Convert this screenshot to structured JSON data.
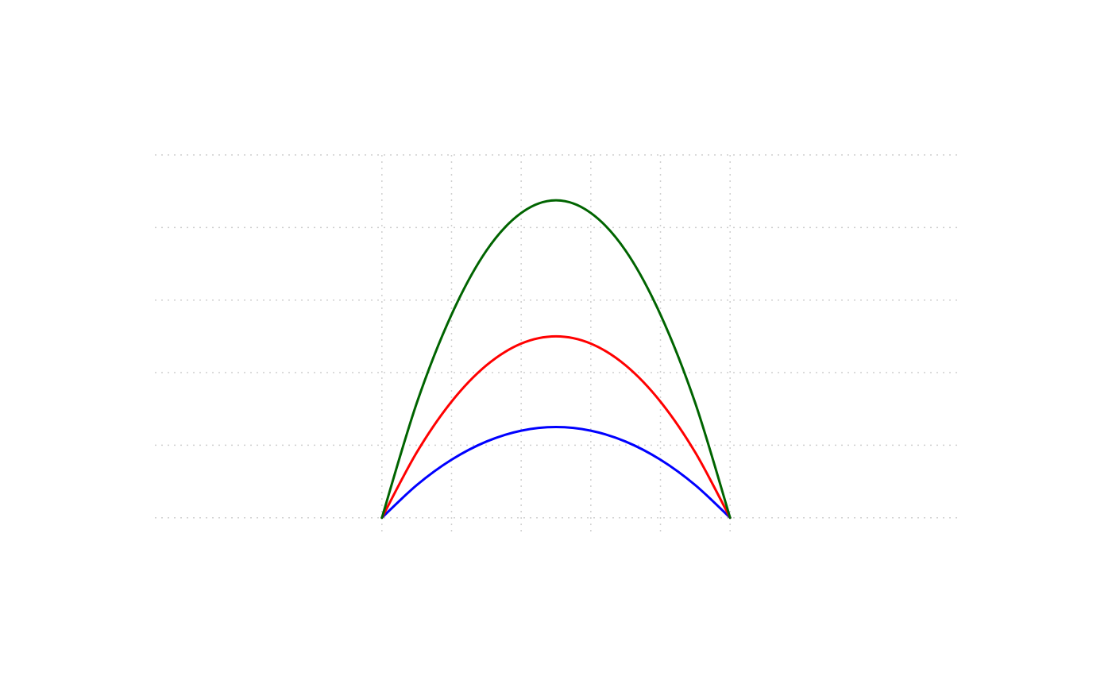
{
  "chart_data": {
    "type": "line",
    "title": "",
    "xlabel": "",
    "ylabel": "",
    "xlim": [
      -3.26,
      8.26
    ],
    "ylim": [
      -0.2,
      5.0
    ],
    "grid": true,
    "x_grid": [
      0,
      1,
      2,
      3,
      4,
      5
    ],
    "y_grid": [
      0,
      1,
      2,
      3,
      4,
      5
    ],
    "series": [
      {
        "color": "#0000ff",
        "x": [
          0,
          0.5,
          1,
          1.5,
          2,
          2.5,
          3,
          3.5,
          4,
          4.5,
          5
        ],
        "y": [
          0,
          0.45,
          0.8,
          1.05,
          1.2,
          1.25,
          1.2,
          1.05,
          0.8,
          0.45,
          0
        ]
      },
      {
        "color": "#ff0000",
        "x": [
          0,
          0.5,
          1,
          1.5,
          2,
          2.5,
          3,
          3.5,
          4,
          4.5,
          5
        ],
        "y": [
          0,
          0.9,
          1.6,
          2.1,
          2.4,
          2.5,
          2.4,
          2.1,
          1.6,
          0.9,
          0
        ]
      },
      {
        "color": "#006400",
        "x": [
          0,
          0.5,
          1,
          1.5,
          2,
          2.5,
          3,
          3.5,
          4,
          4.5,
          5
        ],
        "y": [
          0,
          1.58,
          2.8,
          3.68,
          4.2,
          4.375,
          4.2,
          3.68,
          2.8,
          1.58,
          0
        ]
      }
    ]
  }
}
